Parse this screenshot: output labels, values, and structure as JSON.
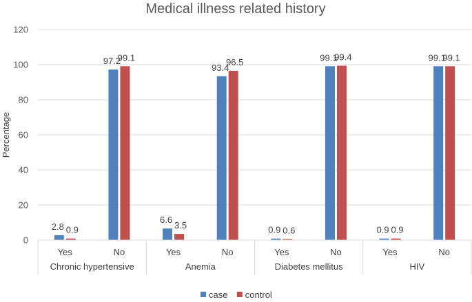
{
  "chart_data": {
    "type": "bar",
    "title": "Medical illness related history",
    "ylabel": "Percentage",
    "xlabel": "",
    "ylim": [
      0,
      120
    ],
    "yticks": [
      0,
      20,
      40,
      60,
      80,
      100,
      120
    ],
    "grid": true,
    "legend_position": "bottom",
    "groups": [
      {
        "name": "Chronic hypertensive",
        "categories": [
          "Yes",
          "No"
        ]
      },
      {
        "name": "Anemia",
        "categories": [
          "Yes",
          "No"
        ]
      },
      {
        "name": "Diabetes mellitus",
        "categories": [
          "Yes",
          "No"
        ]
      },
      {
        "name": "HIV",
        "categories": [
          "Yes",
          "No"
        ]
      }
    ],
    "categories": [
      "Yes",
      "No",
      "Yes",
      "No",
      "Yes",
      "No",
      "Yes",
      "No"
    ],
    "series": [
      {
        "name": "case",
        "color": "#4f81bd",
        "values": [
          2.8,
          97.2,
          6.6,
          93.4,
          0.9,
          99.1,
          0.9,
          99.1
        ]
      },
      {
        "name": "control",
        "color": "#c0504d",
        "values": [
          0.9,
          99.1,
          3.5,
          96.5,
          0.6,
          99.4,
          0.9,
          99.1
        ]
      }
    ]
  }
}
